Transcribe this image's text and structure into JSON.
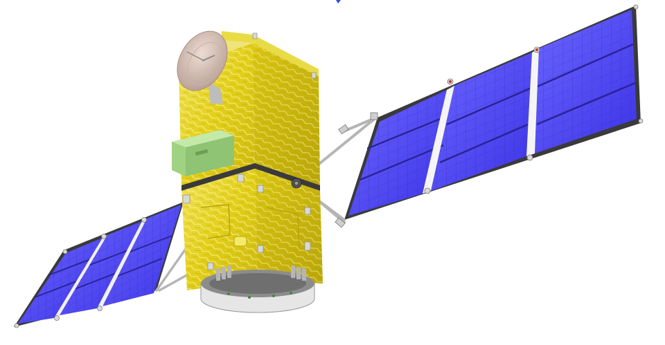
{
  "scene": {
    "subject": "satellite",
    "colors": {
      "background": "#ffffff",
      "solar_cell": "#4a3ff0",
      "solar_cell_light": "#6a63ff",
      "solar_frame": "#3a3a3a",
      "solar_grid": "#2a2396",
      "hinge": "#d9d9d9",
      "foil": "#e3d21c",
      "foil_dark": "#c4b10b",
      "foil_light": "#f4ea6a",
      "dish": "#d8c2b8",
      "dish_shadow": "#b49d93",
      "green_box": "#a9d88a",
      "green_box_dark": "#86b96a",
      "adapter_ring": "#e6e6e6",
      "adapter_dark": "#8c8c8c",
      "boom": "#bdbdbd",
      "accent_blue": "#2222cc"
    }
  }
}
